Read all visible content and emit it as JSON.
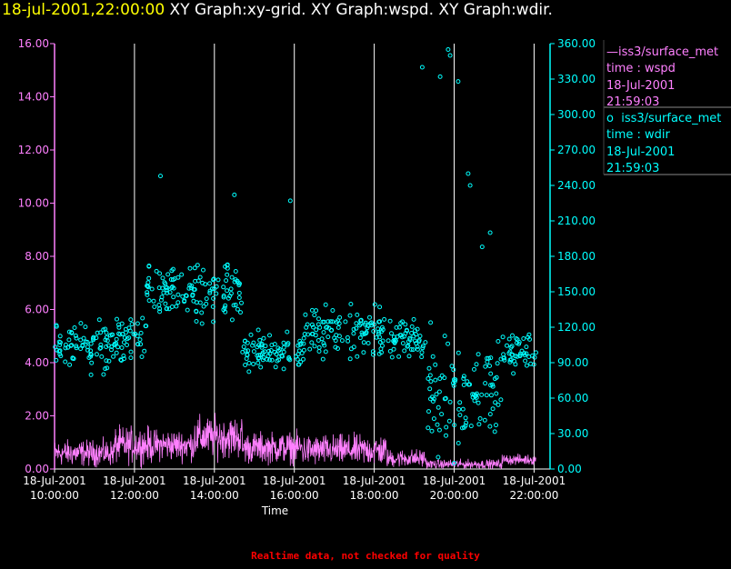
{
  "header": {
    "timestamp": "18-jul-2001,22:00:00",
    "title": "XY Graph:xy-grid.  XY Graph:wspd.  XY Graph:wdir."
  },
  "legend": {
    "wspd": {
      "marker": "—",
      "name": "iss3/surface_met",
      "var": "time : wspd",
      "date": "18-Jul-2001",
      "time": "21:59:03"
    },
    "wdir": {
      "marker": "o",
      "name": "iss3/surface_met",
      "var": "time : wdir",
      "date": "18-Jul-2001",
      "time": "21:59:03"
    }
  },
  "footer": "Realtime data, not checked for quality",
  "colors": {
    "wspd": "#ff80ff",
    "wdir": "#00ffff",
    "header_time": "#ffff00",
    "grid": "#ffffff",
    "footer": "#ff0000"
  },
  "chart_data": {
    "type": "line+scatter",
    "xlabel": "Time",
    "x_range_hours": [
      10,
      22.4
    ],
    "x_ticks": [
      {
        "value": 10,
        "date": "18-Jul-2001",
        "time": "10:00:00"
      },
      {
        "value": 12,
        "date": "18-Jul-2001",
        "time": "12:00:00"
      },
      {
        "value": 14,
        "date": "18-Jul-2001",
        "time": "14:00:00"
      },
      {
        "value": 16,
        "date": "18-Jul-2001",
        "time": "16:00:00"
      },
      {
        "value": 18,
        "date": "18-Jul-2001",
        "time": "18:00:00"
      },
      {
        "value": 20,
        "date": "18-Jul-2001",
        "time": "20:00:00"
      },
      {
        "value": 22,
        "date": "18-Jul-2001",
        "time": "22:00:00"
      }
    ],
    "left_axis": {
      "series": "wspd",
      "ylim": [
        0,
        16
      ],
      "ticks": [
        "0.00",
        "2.00",
        "4.00",
        "6.00",
        "8.00",
        "10.00",
        "12.00",
        "14.00",
        "16.00"
      ]
    },
    "right_axis": {
      "series": "wdir",
      "ylim": [
        0,
        360
      ],
      "ticks": [
        "0.00",
        "30.00",
        "60.00",
        "90.00",
        "120.00",
        "150.00",
        "180.00",
        "210.00",
        "240.00",
        "270.00",
        "300.00",
        "330.00",
        "360.00"
      ]
    },
    "series": [
      {
        "name": "wspd",
        "axis": "left",
        "style": "line",
        "segments": [
          {
            "t0": 10.0,
            "t1": 11.5,
            "mean": 0.6,
            "amp": 0.5
          },
          {
            "t0": 11.5,
            "t1": 12.5,
            "mean": 0.9,
            "amp": 0.7
          },
          {
            "t0": 12.5,
            "t1": 13.5,
            "mean": 0.9,
            "amp": 0.6
          },
          {
            "t0": 13.5,
            "t1": 14.7,
            "mean": 1.2,
            "amp": 0.8
          },
          {
            "t0": 14.7,
            "t1": 16.2,
            "mean": 0.8,
            "amp": 0.6
          },
          {
            "t0": 16.2,
            "t1": 18.3,
            "mean": 0.7,
            "amp": 0.6
          },
          {
            "t0": 18.3,
            "t1": 19.3,
            "mean": 0.4,
            "amp": 0.35
          },
          {
            "t0": 19.3,
            "t1": 21.2,
            "mean": 0.18,
            "amp": 0.18
          },
          {
            "t0": 21.2,
            "t1": 22.05,
            "mean": 0.35,
            "amp": 0.2
          }
        ]
      },
      {
        "name": "wdir",
        "axis": "right",
        "style": "circles",
        "clusters": [
          {
            "t0": 10.0,
            "t1": 11.5,
            "mean": 105,
            "spread": 25
          },
          {
            "t0": 11.5,
            "t1": 12.3,
            "mean": 110,
            "spread": 25
          },
          {
            "t0": 12.3,
            "t1": 13.5,
            "mean": 150,
            "spread": 25
          },
          {
            "t0": 13.5,
            "t1": 14.7,
            "mean": 150,
            "spread": 30
          },
          {
            "t0": 14.7,
            "t1": 16.2,
            "mean": 100,
            "spread": 20
          },
          {
            "t0": 16.2,
            "t1": 18.3,
            "mean": 115,
            "spread": 25
          },
          {
            "t0": 18.3,
            "t1": 19.3,
            "mean": 110,
            "spread": 20
          },
          {
            "t0": 19.3,
            "t1": 21.2,
            "mean": 70,
            "spread": 50
          },
          {
            "t0": 21.2,
            "t1": 22.05,
            "mean": 100,
            "spread": 20
          }
        ],
        "outliers": [
          {
            "t": 12.65,
            "v": 248
          },
          {
            "t": 14.5,
            "v": 232
          },
          {
            "t": 15.9,
            "v": 227
          },
          {
            "t": 19.2,
            "v": 340
          },
          {
            "t": 19.65,
            "v": 332
          },
          {
            "t": 19.85,
            "v": 355
          },
          {
            "t": 19.9,
            "v": 350
          },
          {
            "t": 20.1,
            "v": 328
          },
          {
            "t": 20.35,
            "v": 250
          },
          {
            "t": 20.4,
            "v": 240
          },
          {
            "t": 20.9,
            "v": 200
          },
          {
            "t": 20.7,
            "v": 188
          },
          {
            "t": 19.6,
            "v": 10
          },
          {
            "t": 20.0,
            "v": 5
          }
        ]
      }
    ]
  }
}
